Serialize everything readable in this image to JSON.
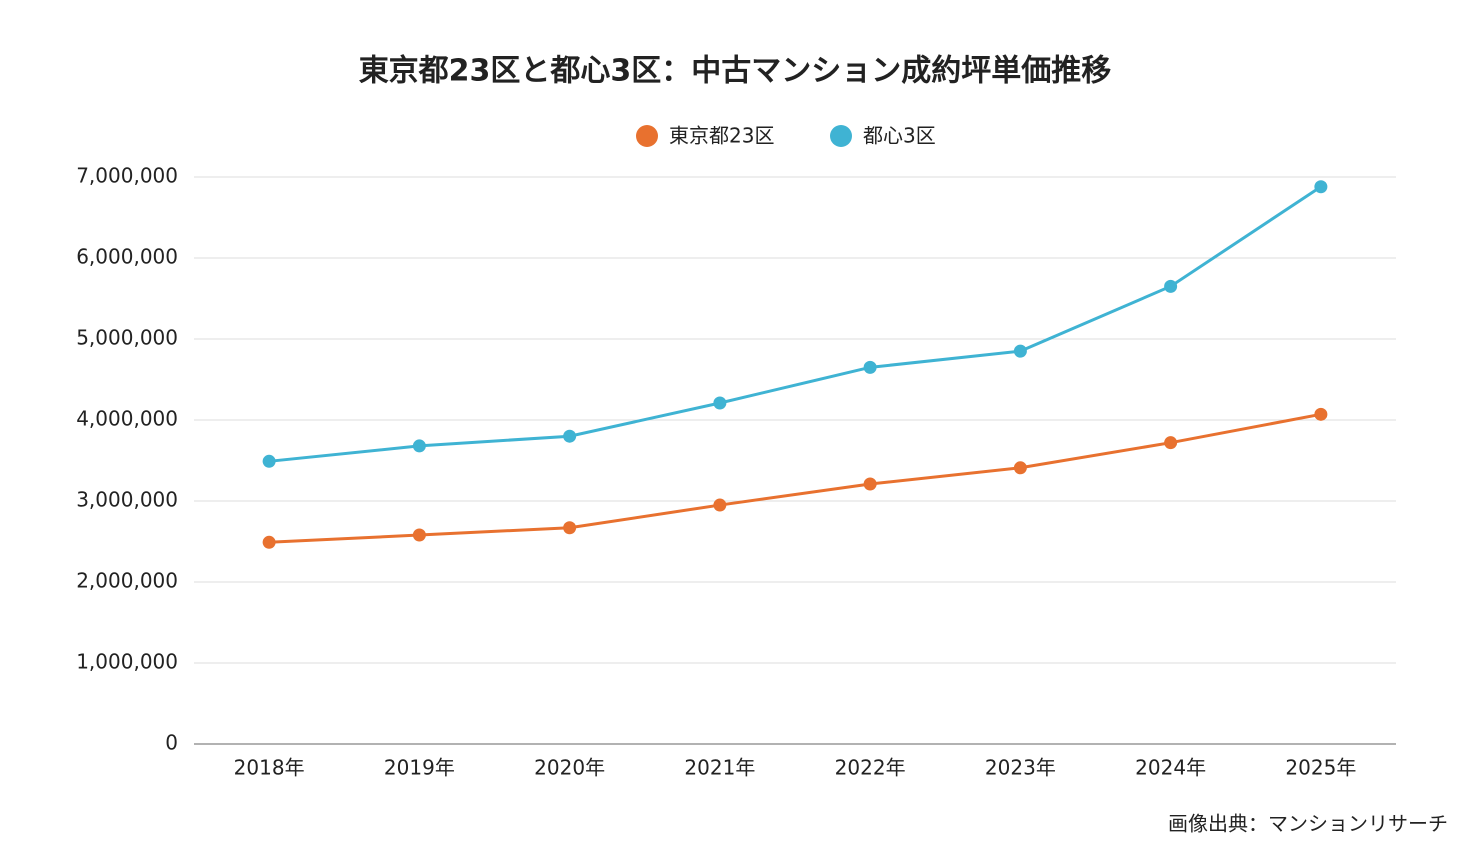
{
  "chart_data": {
    "type": "line",
    "title": "東京都23区と都心3区：中古マンション成約坪単価推移",
    "categories": [
      "2018年",
      "2019年",
      "2020年",
      "2021年",
      "2022年",
      "2023年",
      "2024年",
      "2025年"
    ],
    "series": [
      {
        "name": "東京都23区",
        "color": "#e8712f",
        "values": [
          2490000,
          2580000,
          2670000,
          2950000,
          3210000,
          3410000,
          3720000,
          4070000
        ]
      },
      {
        "name": "都心3区",
        "color": "#3fb3d3",
        "values": [
          3490000,
          3680000,
          3800000,
          4210000,
          4650000,
          4850000,
          5650000,
          6880000
        ]
      }
    ],
    "ylim": [
      0,
      7000000
    ],
    "yticks": [
      0,
      {
        "value": 1000000,
        "label": "1,000,000"
      },
      {
        "value": 2000000,
        "label": "2,000,000"
      },
      {
        "value": 3000000,
        "label": "3,000,000"
      },
      {
        "value": 4000000,
        "label": "4,000,000"
      },
      {
        "value": 5000000,
        "label": "5,000,000"
      },
      {
        "value": 6000000,
        "label": "6,000,000"
      },
      {
        "value": 7000000,
        "label": "7,000,000"
      }
    ],
    "grid": true,
    "legend": "top",
    "source": "画像出典：マンションリサーチ"
  }
}
